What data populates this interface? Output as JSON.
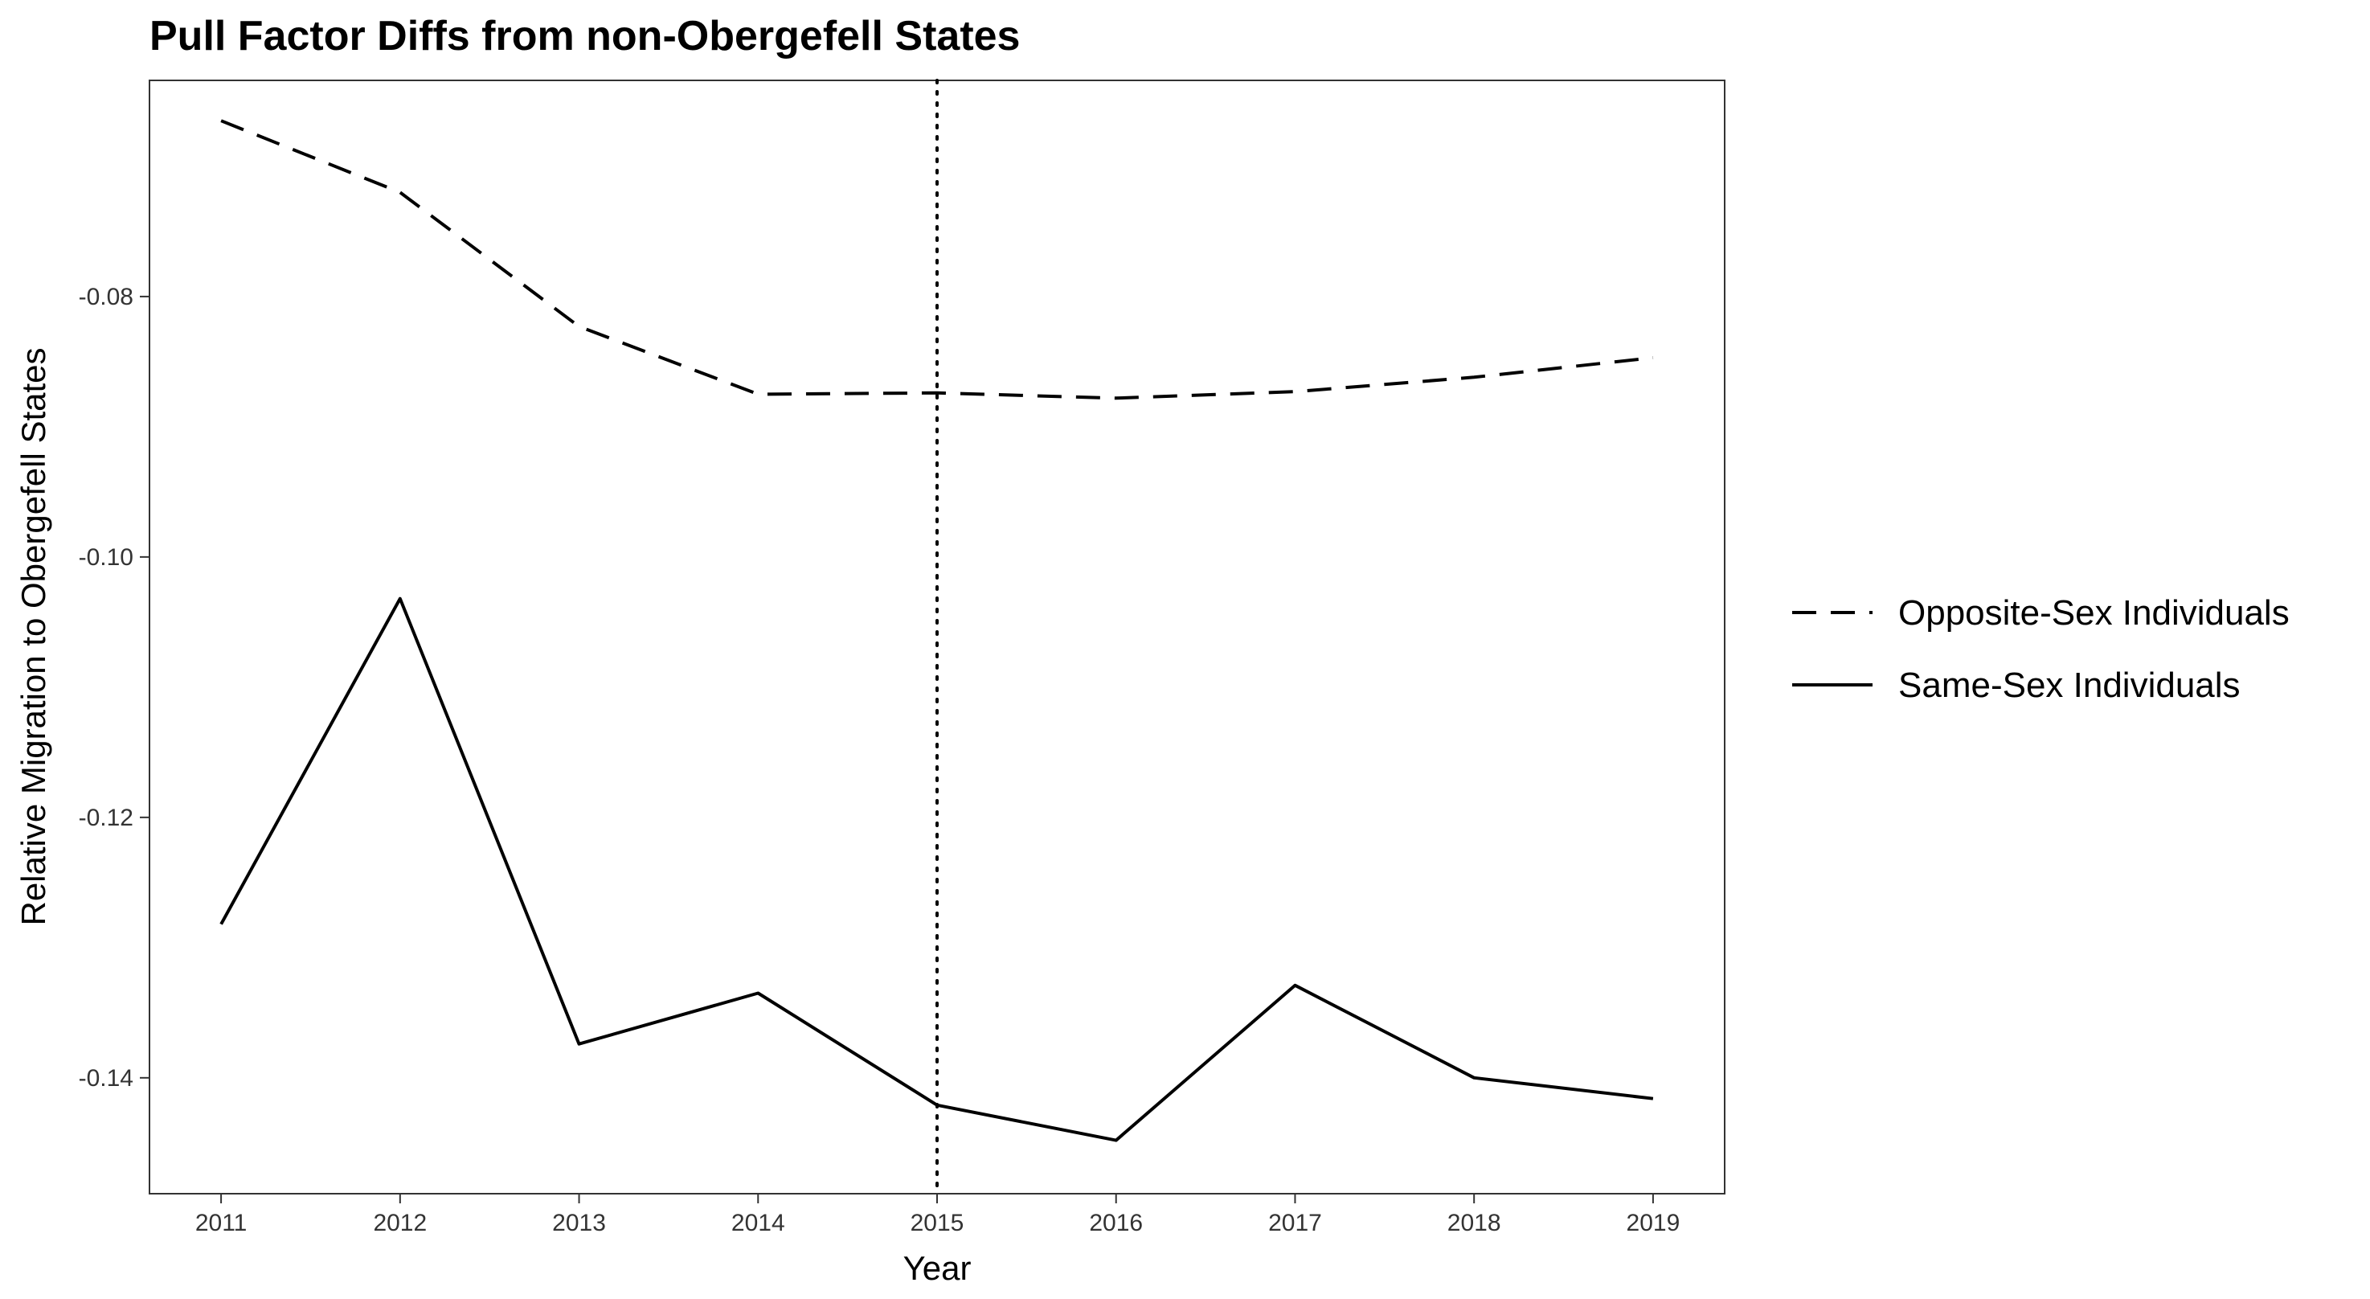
{
  "chart_data": {
    "type": "line",
    "title": "Pull Factor Diffs from non-Obergefell States",
    "xlabel": "Year",
    "ylabel": "Relative Migration to Obergefell States",
    "x": [
      2011,
      2012,
      2013,
      2014,
      2015,
      2016,
      2017,
      2018,
      2019
    ],
    "xlim": [
      2010.6,
      2019.4
    ],
    "ylim": [
      -0.1489,
      -0.0634
    ],
    "yticks": [
      -0.08,
      -0.1,
      -0.12,
      -0.14
    ],
    "ytick_labels": [
      "-0.08",
      "-0.10",
      "-0.12",
      "-0.14"
    ],
    "xtick_labels": [
      "2011",
      "2012",
      "2013",
      "2014",
      "2015",
      "2016",
      "2017",
      "2018",
      "2019"
    ],
    "grid": false,
    "vline": {
      "x": 2015,
      "style": "dotted"
    },
    "legend_position": "right",
    "series": [
      {
        "name": "Opposite-Sex Individuals",
        "style": "dashed",
        "color": "#000000",
        "values": [
          -0.0665,
          -0.072,
          -0.0823,
          -0.0875,
          -0.0874,
          -0.0878,
          -0.0873,
          -0.0862,
          -0.0847
        ]
      },
      {
        "name": "Same-Sex Individuals",
        "style": "solid",
        "color": "#000000",
        "values": [
          -0.1282,
          -0.1032,
          -0.1374,
          -0.1335,
          -0.1421,
          -0.1448,
          -0.1329,
          -0.14,
          -0.1416
        ]
      }
    ]
  }
}
